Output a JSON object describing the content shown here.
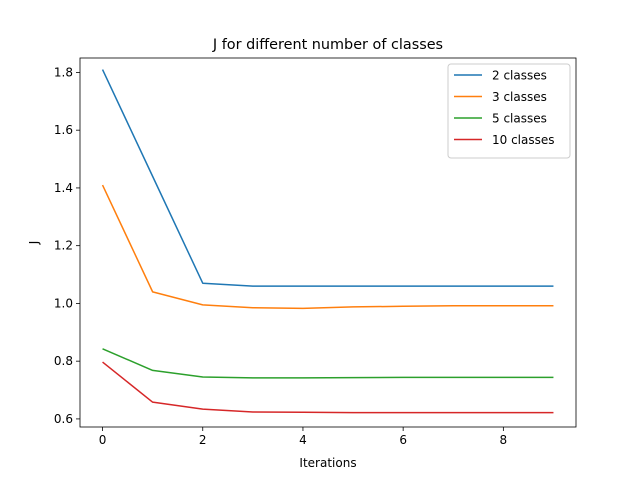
{
  "chart_data": {
    "type": "line",
    "title": "J for different number of classes",
    "xlabel": "Iterations",
    "ylabel": "J",
    "x": [
      0,
      1,
      2,
      3,
      4,
      5,
      6,
      7,
      8,
      9
    ],
    "xlim": [
      -0.45,
      9.45
    ],
    "ylim": [
      0.572,
      1.85
    ],
    "xticks": [
      0,
      2,
      4,
      6,
      8
    ],
    "yticks": [
      0.6,
      0.8,
      1.0,
      1.2,
      1.4,
      1.6,
      1.8
    ],
    "grid": false,
    "legend_position": "top-right",
    "series": [
      {
        "name": "2 classes",
        "color": "#1f77b4",
        "values": [
          1.81,
          1.44,
          1.07,
          1.06,
          1.06,
          1.06,
          1.06,
          1.06,
          1.06,
          1.06
        ]
      },
      {
        "name": "3 classes",
        "color": "#ff7f0e",
        "values": [
          1.41,
          1.04,
          0.995,
          0.985,
          0.983,
          0.988,
          0.99,
          0.992,
          0.992,
          0.992
        ]
      },
      {
        "name": "5 classes",
        "color": "#2ca02c",
        "values": [
          0.843,
          0.768,
          0.745,
          0.742,
          0.742,
          0.743,
          0.744,
          0.744,
          0.744,
          0.744
        ]
      },
      {
        "name": "10 classes",
        "color": "#d62728",
        "values": [
          0.797,
          0.658,
          0.634,
          0.624,
          0.623,
          0.622,
          0.622,
          0.622,
          0.622,
          0.622
        ]
      }
    ]
  }
}
